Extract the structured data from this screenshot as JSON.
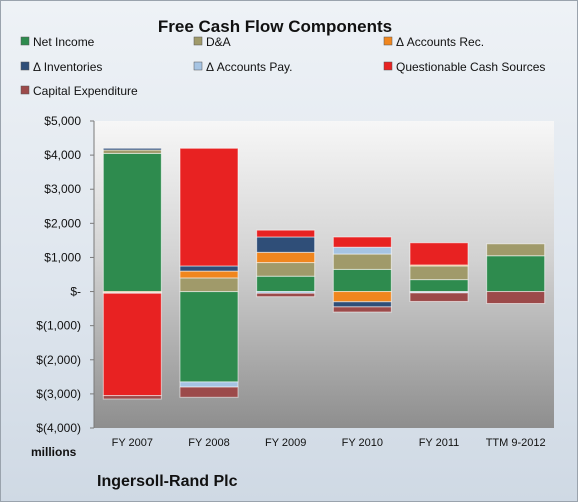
{
  "chart_data": {
    "type": "bar",
    "stacked": true,
    "title": "Free Cash Flow Components",
    "ylabel": "millions",
    "footer": "Ingersoll-Rand Plc",
    "ylim": [
      -4000,
      5000
    ],
    "yticks": [
      5000,
      4000,
      3000,
      2000,
      1000,
      0,
      -1000,
      -2000,
      -3000,
      -4000
    ],
    "ytick_labels": [
      "$5,000",
      "$4,000",
      "$3,000",
      "$2,000",
      "$1,000",
      "$-",
      "$(1,000)",
      "$(2,000)",
      "$(3,000)",
      "$(4,000)"
    ],
    "categories": [
      "FY 2007",
      "FY 2008",
      "FY 2009",
      "FY 2010",
      "FY 2011",
      "TTM 9-2012"
    ],
    "legend_position": "top",
    "grid": false,
    "series": [
      {
        "name": "Net Income",
        "color": "#2e8b4e",
        "values": [
          4050,
          -2650,
          450,
          650,
          350,
          1050
        ]
      },
      {
        "name": "D&A",
        "color": "#a09a6a",
        "values": [
          100,
          400,
          400,
          450,
          400,
          350
        ]
      },
      {
        "name": "Δ Accounts Rec.",
        "color": "#f0861e",
        "values": [
          -30,
          200,
          300,
          -300,
          30,
          0
        ]
      },
      {
        "name": "Δ Inventories",
        "color": "#2f4e78",
        "values": [
          50,
          150,
          450,
          -150,
          -10,
          0
        ]
      },
      {
        "name": "Δ Accounts Pay.",
        "color": "#a6c4e3",
        "values": [
          -20,
          -150,
          -50,
          200,
          -30,
          0
        ]
      },
      {
        "name": "Questionable Cash Sources",
        "color": "#e82222",
        "values": [
          -3000,
          3450,
          200,
          300,
          650,
          0
        ]
      },
      {
        "name": "Capital Expenditure",
        "color": "#9c4a4a",
        "values": [
          -100,
          -300,
          -100,
          -150,
          -250,
          -350
        ]
      }
    ]
  }
}
